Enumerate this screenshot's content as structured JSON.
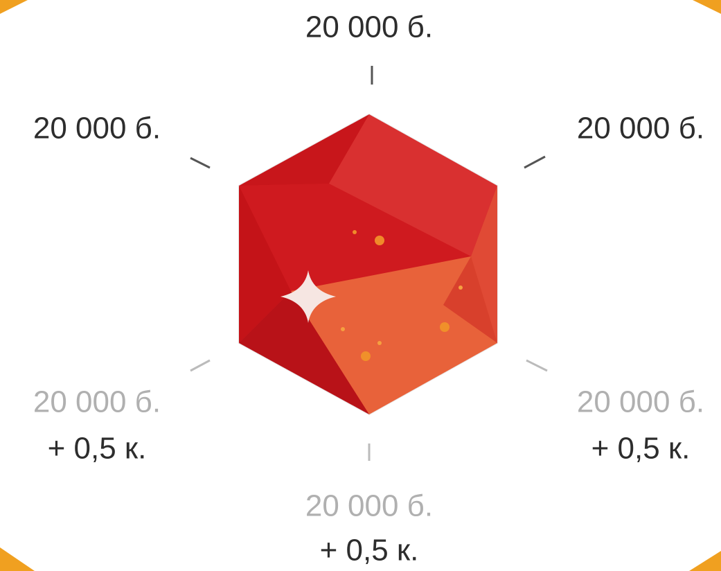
{
  "nodes": [
    {
      "cost": "20 000 б."
    },
    {
      "cost": "20 000 б."
    },
    {
      "cost": "20 000 б."
    },
    {
      "cost": "20 000 б.",
      "bonus": "+ 0,5 к."
    },
    {
      "cost": "20 000 б.",
      "bonus": "+ 0,5 к."
    },
    {
      "cost": "20 000 б.",
      "bonus": "+ 0,5 к."
    }
  ]
}
